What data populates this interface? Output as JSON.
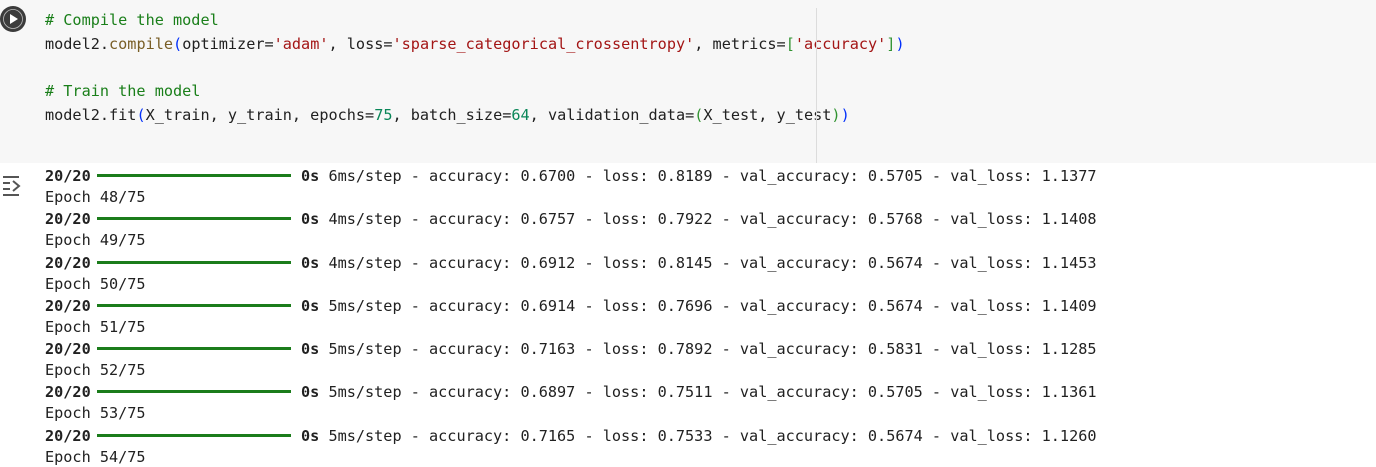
{
  "code": {
    "comment1": "# Compile the model",
    "compile": {
      "obj": "model2.",
      "method": "compile",
      "open": "(",
      "arg1_key": "optimizer=",
      "arg1_val": "'adam'",
      "sep1": ", loss=",
      "arg2_val": "'sparse_categorical_crossentropy'",
      "sep2": ", metrics=",
      "bracket_open": "[",
      "arg3_val": "'accuracy'",
      "bracket_close": "]",
      "close": ")"
    },
    "comment2": "# Train the model",
    "fit": {
      "obj": "model2.fit",
      "open": "(",
      "args_a": "X_train, y_train, epochs=",
      "epochs": "75",
      "args_b": ", batch_size=",
      "batch": "64",
      "args_c": ", validation_data=",
      "inner_open": "(",
      "args_d": "X_test, y_test",
      "inner_close": ")",
      "close": ")"
    }
  },
  "output": {
    "lines": [
      {
        "step": "20/20",
        "time": "0s",
        "rest": " 6ms/step - accuracy: 0.6700 - loss: 0.8189 - val_accuracy: 0.5705 - val_loss: 1.1377",
        "epoch": "Epoch 48/75"
      },
      {
        "step": "20/20",
        "time": "0s",
        "rest": " 4ms/step - accuracy: 0.6757 - loss: 0.7922 - val_accuracy: 0.5768 - val_loss: 1.1408",
        "epoch": "Epoch 49/75"
      },
      {
        "step": "20/20",
        "time": "0s",
        "rest": " 4ms/step - accuracy: 0.6912 - loss: 0.8145 - val_accuracy: 0.5674 - val_loss: 1.1453",
        "epoch": "Epoch 50/75"
      },
      {
        "step": "20/20",
        "time": "0s",
        "rest": " 5ms/step - accuracy: 0.6914 - loss: 0.7696 - val_accuracy: 0.5674 - val_loss: 1.1409",
        "epoch": "Epoch 51/75"
      },
      {
        "step": "20/20",
        "time": "0s",
        "rest": " 5ms/step - accuracy: 0.7163 - loss: 0.7892 - val_accuracy: 0.5831 - val_loss: 1.1285",
        "epoch": "Epoch 52/75"
      },
      {
        "step": "20/20",
        "time": "0s",
        "rest": " 5ms/step - accuracy: 0.6897 - loss: 0.7511 - val_accuracy: 0.5705 - val_loss: 1.1361",
        "epoch": "Epoch 53/75"
      },
      {
        "step": "20/20",
        "time": "0s",
        "rest": " 5ms/step - accuracy: 0.7165 - loss: 0.7533 - val_accuracy: 0.5674 - val_loss: 1.1260",
        "epoch": "Epoch 54/75"
      }
    ]
  },
  "icons": {
    "run": "play-icon",
    "output": "output-toggle-icon"
  },
  "colors": {
    "progress_bar": "#1b7c1b",
    "comment": "#1a7f1a",
    "string": "#a31515",
    "number": "#098658"
  }
}
